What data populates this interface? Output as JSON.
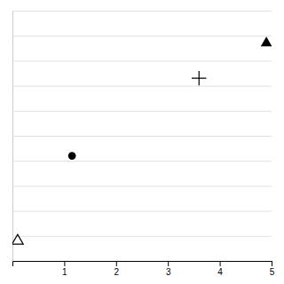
{
  "chart_data": {
    "type": "scatter",
    "series": [
      {
        "x": [
          4.9
        ],
        "values": [
          8.7
        ],
        "marker": "triangle",
        "color": "black"
      },
      {
        "x": [
          3.6
        ],
        "values": [
          7.3
        ],
        "marker": "plus",
        "color": "black"
      },
      {
        "x": [
          1.15
        ],
        "values": [
          4.2
        ],
        "marker": "circle",
        "color": "black"
      },
      {
        "x": [
          0.1
        ],
        "values": [
          0.8
        ],
        "marker": "triangle-open",
        "color": "black"
      }
    ],
    "xlim": [
      0,
      5
    ],
    "ylim": [
      0,
      10
    ],
    "xticks": [
      1,
      2,
      3,
      4,
      5
    ],
    "yticks": [
      0,
      1,
      2,
      3,
      4,
      5,
      6,
      7,
      8,
      9,
      10
    ],
    "grid": "y",
    "tick_labels": "x"
  }
}
